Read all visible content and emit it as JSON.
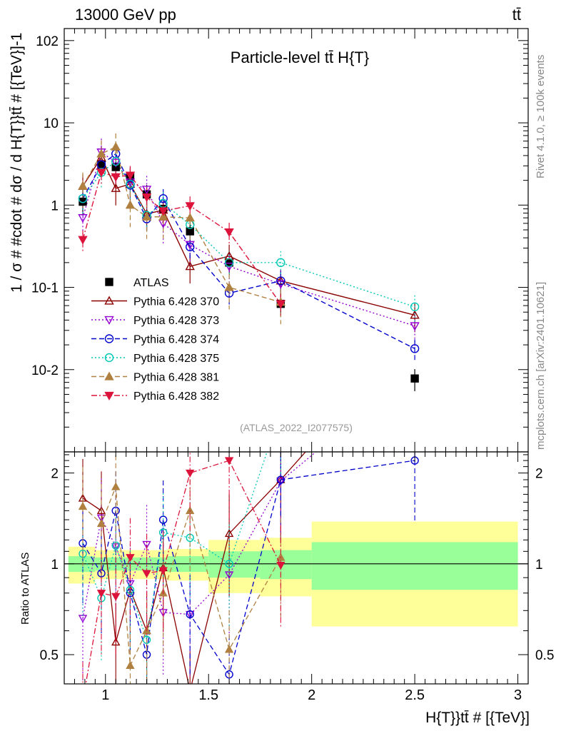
{
  "header": {
    "left": "13000 GeV pp",
    "right": "tt̄"
  },
  "side": {
    "rivet": "Rivet 4.1.0, ≥ 100k events",
    "mcplots": "mcplots.cern.ch [arXiv:2401.10621]"
  },
  "chart_data": {
    "type": "scatter",
    "title": "Particle-level tt̄  H{T}",
    "analysis_tag": "(ATLAS_2022_I2077575)",
    "ylabel": "1 / σ # #cdot # dσ / d H{T}}tt̄ # [{TeV}]-1",
    "ratio_ylabel": "Ratio to ATLAS",
    "xlabel": "H{T}}tt̄ # [{TeV}]",
    "xlim": [
      0.8,
      3.05
    ],
    "ylim": [
      0.001,
      140
    ],
    "ratio_ylim": [
      0.4,
      2.35
    ],
    "y_scale": "log",
    "x_tick_labels": [
      "1",
      "1.5",
      "2",
      "2.5",
      "3"
    ],
    "y_tick_labels": [
      "10-2",
      "10-1",
      "1",
      "10",
      "102"
    ],
    "ratio_tick_labels": [
      "0.5",
      "1",
      "2"
    ],
    "legend_placement": "middle-left",
    "x": [
      0.89,
      0.98,
      1.05,
      1.12,
      1.2,
      1.28,
      1.41,
      1.6,
      1.85,
      2.5
    ],
    "bands": [
      {
        "x0": 0.82,
        "x1": 0.95,
        "inner": 0.06,
        "outer": 0.14
      },
      {
        "x0": 0.95,
        "x1": 1.0,
        "inner": 0.05,
        "outer": 0.11
      },
      {
        "x0": 1.0,
        "x1": 1.1,
        "inner": 0.05,
        "outer": 0.11
      },
      {
        "x0": 1.1,
        "x1": 1.3,
        "inner": 0.05,
        "outer": 0.11
      },
      {
        "x0": 1.3,
        "x1": 1.5,
        "inner": 0.06,
        "outer": 0.12
      },
      {
        "x0": 1.5,
        "x1": 1.75,
        "inner": 0.1,
        "outer": 0.2
      },
      {
        "x0": 1.75,
        "x1": 2.0,
        "inner": 0.11,
        "outer": 0.22
      },
      {
        "x0": 2.0,
        "x1": 3.0,
        "inner": 0.18,
        "outer": 0.38
      }
    ],
    "series": [
      {
        "name": "ATLAS",
        "color": "#000000",
        "marker": "square",
        "line": "none",
        "values": [
          1.1,
          3.1,
          2.9,
          2.2,
          1.35,
          0.9,
          0.48,
          0.2,
          0.063,
          0.0078
        ]
      },
      {
        "name": "Pythia 6.428 370",
        "color": "#8b0000",
        "marker": "triangle-open",
        "line": "solid",
        "values": [
          1.7,
          3.8,
          1.6,
          1.8,
          0.78,
          0.87,
          0.18,
          0.24,
          0.12,
          0.046
        ]
      },
      {
        "name": "Pythia 6.428 373",
        "color": "#9400d3",
        "marker": "triangle-down-open",
        "line": "dotted",
        "values": [
          0.7,
          4.4,
          3.3,
          1.9,
          1.55,
          0.6,
          0.33,
          0.18,
          0.11,
          0.034
        ]
      },
      {
        "name": "Pythia 6.428 374",
        "color": "#0000cd",
        "marker": "circle-open",
        "line": "dashed",
        "values": [
          1.2,
          3.1,
          4.2,
          1.75,
          0.68,
          1.2,
          0.31,
          0.085,
          0.12,
          0.018
        ]
      },
      {
        "name": "Pythia 6.428 375",
        "color": "#00c8b4",
        "marker": "circle-open",
        "line": "dotted",
        "values": [
          1.2,
          2.5,
          3.4,
          1.8,
          0.75,
          1.05,
          0.58,
          0.2,
          0.2,
          0.058
        ]
      },
      {
        "name": "Pythia 6.428 381",
        "color": "#b08040",
        "marker": "triangle",
        "line": "dashed",
        "values": [
          1.7,
          4.2,
          5.1,
          1.0,
          0.72,
          0.72,
          0.7,
          0.1,
          0.066,
          null
        ]
      },
      {
        "name": "Pythia 6.428 382",
        "color": "#dc143c",
        "marker": "triangle-down",
        "line": "dashdot",
        "values": [
          0.38,
          2.5,
          2.2,
          2.3,
          1.25,
          0.85,
          0.98,
          0.47,
          0.063,
          null
        ]
      }
    ],
    "ratios": [
      [
        1.0,
        1.0,
        1.0,
        1.0,
        1.0,
        1.0,
        1.0,
        1.0,
        1.0,
        1.0
      ],
      [
        1.65,
        1.5,
        0.55,
        0.82,
        0.6,
        0.97,
        0.38,
        1.26,
        1.9,
        6.0
      ],
      [
        0.66,
        1.42,
        1.14,
        0.86,
        1.16,
        0.69,
        0.68,
        0.92,
        1.88,
        4.4
      ],
      [
        1.17,
        0.93,
        1.5,
        0.8,
        0.5,
        1.4,
        0.68,
        0.43,
        1.9,
        2.2
      ],
      [
        1.08,
        0.77,
        1.15,
        0.82,
        0.56,
        1.27,
        1.22,
        1.0,
        3.2,
        7.4
      ],
      [
        1.55,
        1.36,
        1.8,
        0.46,
        0.6,
        0.8,
        1.5,
        0.52,
        1.05,
        null
      ],
      [
        0.35,
        0.8,
        0.78,
        1.05,
        0.93,
        0.95,
        2.0,
        2.2,
        0.99,
        null
      ]
    ]
  }
}
